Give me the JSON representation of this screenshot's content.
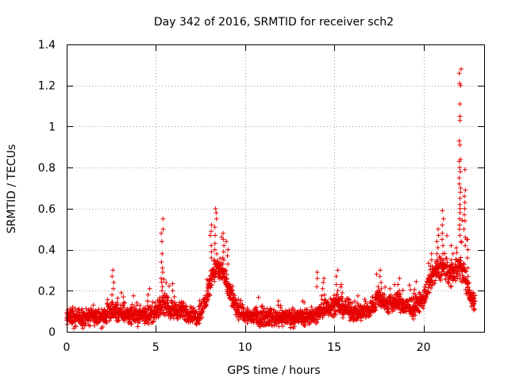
{
  "chart_data": {
    "type": "scatter",
    "title": "Day 342 of 2016, SRMTID for receiver sch2",
    "xlabel": "GPS time / hours",
    "ylabel": "SRMTID / TECUs",
    "xlim": [
      0,
      23.4
    ],
    "ylim": [
      0,
      1.4
    ],
    "grid": true,
    "marker": "+",
    "color": "#e60000",
    "xticks": [
      0,
      5,
      10,
      15,
      20
    ],
    "xtick_labels": [
      "0",
      "5",
      "10",
      "15",
      "20"
    ],
    "yticks": [
      0,
      0.2,
      0.4,
      0.6,
      0.8,
      1.0,
      1.2,
      1.4
    ],
    "ytick_labels": [
      "0",
      "0.2",
      "0.4",
      "0.6",
      "0.8",
      "1",
      "1.2",
      "1.4"
    ],
    "profile": [
      [
        0.0,
        0.07
      ],
      [
        1.0,
        0.07
      ],
      [
        2.0,
        0.07
      ],
      [
        2.6,
        0.1
      ],
      [
        3.0,
        0.09
      ],
      [
        4.0,
        0.08
      ],
      [
        5.0,
        0.09
      ],
      [
        5.4,
        0.14
      ],
      [
        5.8,
        0.11
      ],
      [
        6.5,
        0.1
      ],
      [
        7.3,
        0.07
      ],
      [
        7.8,
        0.15
      ],
      [
        8.2,
        0.3
      ],
      [
        8.7,
        0.3
      ],
      [
        9.0,
        0.22
      ],
      [
        9.5,
        0.12
      ],
      [
        10.0,
        0.08
      ],
      [
        11.0,
        0.07
      ],
      [
        12.0,
        0.07
      ],
      [
        13.0,
        0.07
      ],
      [
        14.0,
        0.08
      ],
      [
        14.5,
        0.12
      ],
      [
        15.0,
        0.13
      ],
      [
        15.5,
        0.12
      ],
      [
        16.0,
        0.1
      ],
      [
        16.5,
        0.09
      ],
      [
        17.0,
        0.11
      ],
      [
        17.5,
        0.17
      ],
      [
        18.0,
        0.13
      ],
      [
        18.5,
        0.15
      ],
      [
        19.0,
        0.12
      ],
      [
        19.5,
        0.12
      ],
      [
        20.0,
        0.16
      ],
      [
        20.5,
        0.27
      ],
      [
        21.0,
        0.32
      ],
      [
        21.5,
        0.28
      ],
      [
        22.0,
        0.32
      ],
      [
        22.3,
        0.28
      ],
      [
        22.6,
        0.17
      ],
      [
        22.9,
        0.15
      ]
    ],
    "spread": 0.035,
    "points_per_hour": 110,
    "spikes": [
      {
        "x": 0.3,
        "values": [
          0.1,
          0.12
        ]
      },
      {
        "x": 1.5,
        "values": [
          0.13,
          0.1
        ]
      },
      {
        "x": 2.6,
        "values": [
          0.3,
          0.27,
          0.24,
          0.21,
          0.18
        ]
      },
      {
        "x": 3.2,
        "values": [
          0.17,
          0.14
        ]
      },
      {
        "x": 4.6,
        "values": [
          0.21,
          0.18,
          0.15
        ]
      },
      {
        "x": 5.35,
        "values": [
          0.55,
          0.5,
          0.48,
          0.44,
          0.38,
          0.34,
          0.31,
          0.29,
          0.26,
          0.22,
          0.2
        ]
      },
      {
        "x": 6.0,
        "values": [
          0.2,
          0.17
        ]
      },
      {
        "x": 8.1,
        "values": [
          0.52,
          0.49,
          0.47,
          0.42,
          0.39,
          0.36
        ]
      },
      {
        "x": 8.35,
        "values": [
          0.6,
          0.58,
          0.55,
          0.51,
          0.47,
          0.43,
          0.4
        ]
      },
      {
        "x": 8.8,
        "values": [
          0.48,
          0.45,
          0.42,
          0.39,
          0.36,
          0.33,
          0.3
        ]
      },
      {
        "x": 9.0,
        "values": [
          0.44,
          0.4,
          0.37,
          0.33,
          0.28
        ]
      },
      {
        "x": 11.9,
        "values": [
          0.15,
          0.13
        ]
      },
      {
        "x": 14.05,
        "values": [
          0.29,
          0.26,
          0.22
        ]
      },
      {
        "x": 14.4,
        "values": [
          0.26,
          0.24,
          0.21,
          0.18
        ]
      },
      {
        "x": 15.15,
        "values": [
          0.3,
          0.27,
          0.23,
          0.2
        ]
      },
      {
        "x": 15.4,
        "values": [
          0.23,
          0.19
        ]
      },
      {
        "x": 17.6,
        "values": [
          0.3,
          0.27,
          0.24,
          0.21
        ]
      },
      {
        "x": 18.6,
        "values": [
          0.26,
          0.23,
          0.2
        ]
      },
      {
        "x": 19.6,
        "values": [
          0.18,
          0.15
        ]
      },
      {
        "x": 20.4,
        "values": [
          0.38,
          0.35,
          0.32
        ]
      },
      {
        "x": 20.8,
        "values": [
          0.5,
          0.47,
          0.44,
          0.41,
          0.38
        ]
      },
      {
        "x": 21.1,
        "values": [
          0.59,
          0.55,
          0.52,
          0.48,
          0.45,
          0.42,
          0.38
        ]
      },
      {
        "x": 21.6,
        "values": [
          0.42,
          0.38,
          0.35
        ]
      },
      {
        "x": 22.05,
        "values": [
          1.28,
          1.26,
          1.21,
          1.2,
          1.11,
          1.05,
          1.03,
          0.93,
          0.91,
          0.84,
          0.83,
          0.8,
          0.78,
          0.75,
          0.72,
          0.7,
          0.68,
          0.65,
          0.62,
          0.6,
          0.58,
          0.55,
          0.52,
          0.5,
          0.47,
          0.44
        ]
      },
      {
        "x": 22.3,
        "values": [
          0.79,
          0.69,
          0.66,
          0.63,
          0.6,
          0.57,
          0.54,
          0.5,
          0.46,
          0.42
        ]
      },
      {
        "x": 22.45,
        "values": [
          0.45,
          0.4,
          0.36,
          0.31,
          0.27,
          0.24
        ]
      }
    ]
  }
}
